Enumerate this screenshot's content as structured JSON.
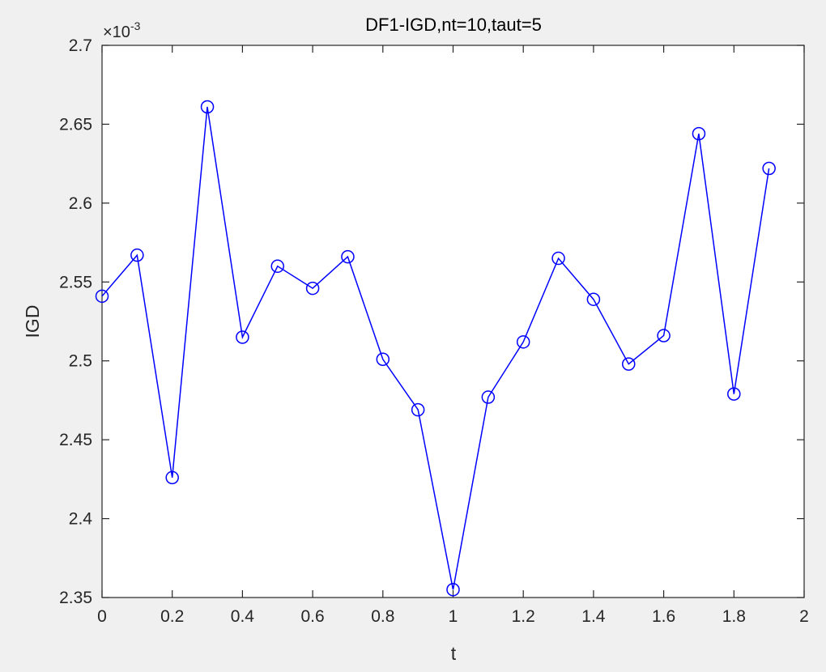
{
  "chart_data": {
    "type": "line",
    "title": "DF1-IGD,nt=10,taut=5",
    "xlabel": "t",
    "ylabel": "IGD",
    "y_exponent_base": "×10",
    "y_exponent_power": "-3",
    "xlim": [
      0,
      2
    ],
    "ylim": [
      2.35,
      2.7
    ],
    "xticks": [
      0,
      0.2,
      0.4,
      0.6,
      0.8,
      1,
      1.2,
      1.4,
      1.6,
      1.8,
      2
    ],
    "xtick_labels": [
      "0",
      "0.2",
      "0.4",
      "0.6",
      "0.8",
      "1",
      "1.2",
      "1.4",
      "1.6",
      "1.8",
      "2"
    ],
    "yticks": [
      2.35,
      2.4,
      2.45,
      2.5,
      2.55,
      2.6,
      2.65,
      2.7
    ],
    "ytick_labels": [
      "2.35",
      "2.4",
      "2.45",
      "2.5",
      "2.55",
      "2.6",
      "2.65",
      "2.7"
    ],
    "grid": false,
    "series": [
      {
        "color": "#0000ff",
        "marker": "circle",
        "x": [
          0,
          0.1,
          0.2,
          0.3,
          0.4,
          0.5,
          0.6,
          0.7,
          0.8,
          0.9,
          1.0,
          1.1,
          1.2,
          1.3,
          1.4,
          1.5,
          1.6,
          1.7,
          1.8,
          1.9
        ],
        "y": [
          2.541,
          2.567,
          2.426,
          2.661,
          2.515,
          2.56,
          2.546,
          2.566,
          2.501,
          2.469,
          2.355,
          2.477,
          2.512,
          2.565,
          2.539,
          2.498,
          2.516,
          2.644,
          2.479,
          2.622
        ]
      }
    ]
  }
}
